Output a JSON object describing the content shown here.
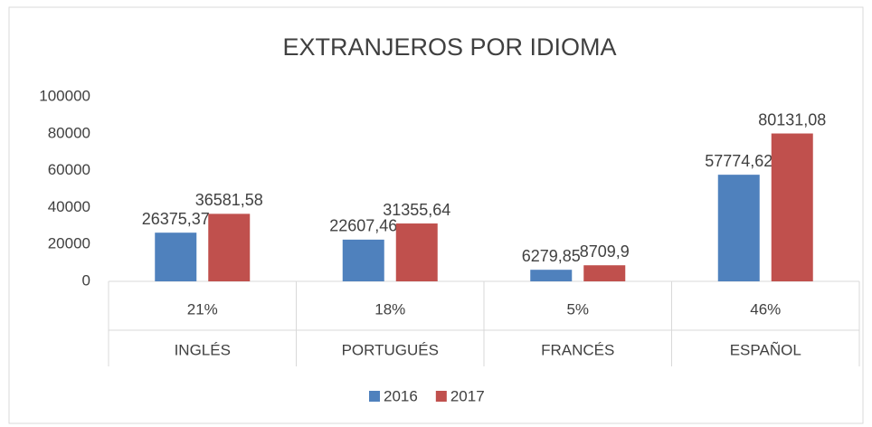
{
  "chart_data": {
    "type": "bar",
    "title": "EXTRANJEROS POR IDIOMA",
    "categories": [
      "INGLÉS",
      "PORTUGUÉS",
      "FRANCÉS",
      "ESPAÑOL"
    ],
    "share_labels": [
      "21%",
      "18%",
      "5%",
      "46%"
    ],
    "series": [
      {
        "name": "2016",
        "color": "#4f81bd",
        "values": [
          26375.37,
          22607.46,
          6279.85,
          57774.62
        ],
        "value_labels": [
          "26375,37",
          "22607,46",
          "6279,85",
          "57774,62"
        ]
      },
      {
        "name": "2017",
        "color": "#c0504d",
        "values": [
          36581.58,
          31355.64,
          8709.9,
          80131.08
        ],
        "value_labels": [
          "36581,58",
          "31355,64",
          "8709,9",
          "80131,08"
        ]
      }
    ],
    "ylim": [
      0,
      100000
    ],
    "yticks": [
      0,
      20000,
      40000,
      60000,
      80000,
      100000
    ],
    "grid": false,
    "legend": "bottom"
  }
}
